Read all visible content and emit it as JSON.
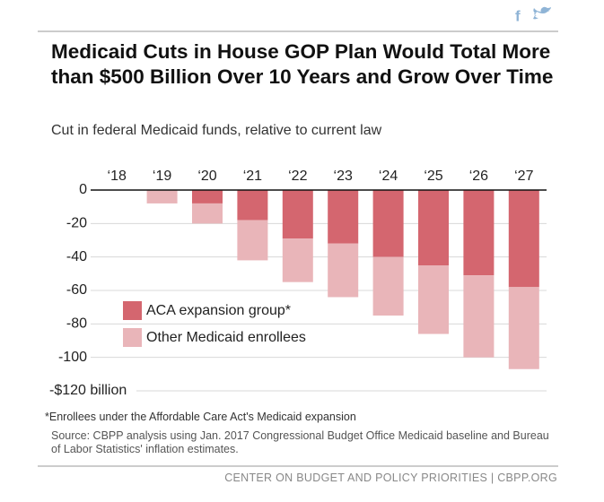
{
  "chart_data": {
    "type": "bar",
    "stacked": true,
    "title": "Medicaid Cuts in House GOP Plan Would Total More than $500 Billion Over 10 Years and Grow Over Time",
    "subtitle": "Cut in federal Medicaid funds, relative to current law",
    "footnote": "*Enrollees under the Affordable Care Act's Medicaid expansion",
    "source": "Source: CBPP analysis using Jan. 2017 Congressional Budget Office Medicaid baseline and Bureau of Labor Statistics' inflation estimates.",
    "credit": "CENTER ON BUDGET AND POLICY PRIORITIES | CBPP.ORG",
    "categories": [
      "‘18",
      "‘19",
      "‘20",
      "‘21",
      "‘22",
      "‘23",
      "‘24",
      "‘25",
      "‘26",
      "‘27"
    ],
    "series": [
      {
        "name": "ACA expansion group*",
        "color": "#d4666f",
        "values": [
          0,
          0,
          -8,
          -18,
          -29,
          -32,
          -40,
          -45,
          -51,
          -58
        ]
      },
      {
        "name": "Other Medicaid enrollees",
        "color": "#e9b5b9",
        "values": [
          0,
          -8,
          -12,
          -24,
          -26,
          -32,
          -35,
          -41,
          -49,
          -49
        ]
      }
    ],
    "ylim": [
      -120,
      0
    ],
    "yticks": [
      0,
      -20,
      -40,
      -60,
      -80,
      -100,
      {
        "value": -120,
        "label": "-$120 billion"
      }
    ],
    "grid": true
  }
}
